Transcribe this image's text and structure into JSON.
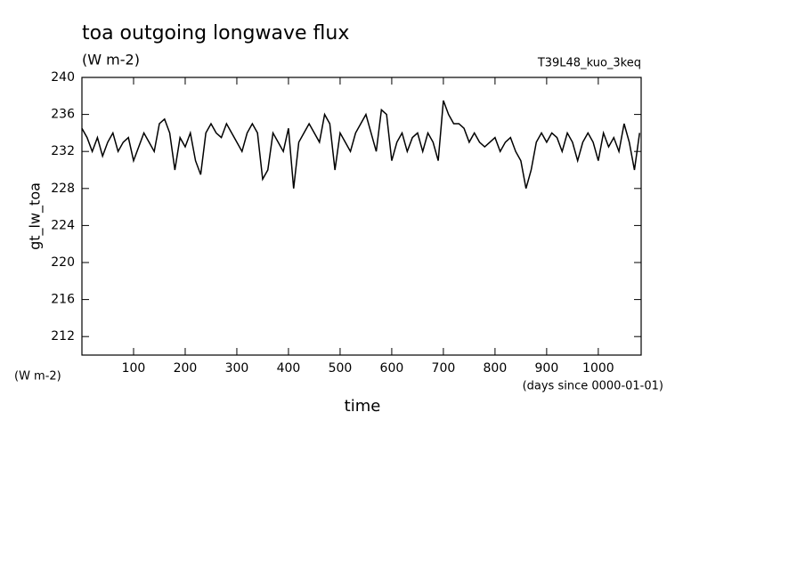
{
  "chart_data": {
    "type": "line",
    "title": "toa outgoing longwave flux",
    "subtitle": "(W m-2)",
    "run_label": "T39L48_kuo_3keq",
    "y_label": "gt_lw_toa",
    "y_units": "(W m-2)",
    "x_label": "time",
    "x_units": "(days since 0000-01-01)",
    "x": [
      0,
      10,
      20,
      30,
      40,
      50,
      60,
      70,
      80,
      90,
      100,
      110,
      120,
      130,
      140,
      150,
      160,
      170,
      180,
      190,
      200,
      210,
      220,
      230,
      240,
      250,
      260,
      270,
      280,
      290,
      300,
      310,
      320,
      330,
      340,
      350,
      360,
      370,
      380,
      390,
      400,
      410,
      420,
      430,
      440,
      450,
      460,
      470,
      480,
      490,
      500,
      510,
      520,
      530,
      540,
      550,
      560,
      570,
      580,
      590,
      600,
      610,
      620,
      630,
      640,
      650,
      660,
      670,
      680,
      690,
      700,
      710,
      720,
      730,
      740,
      750,
      760,
      770,
      780,
      790,
      800,
      810,
      820,
      830,
      840,
      850,
      860,
      870,
      880,
      890,
      900,
      910,
      920,
      930,
      940,
      950,
      960,
      970,
      980,
      990,
      1000,
      1010,
      1020,
      1030,
      1040,
      1050,
      1060,
      1070,
      1080
    ],
    "series": [
      {
        "name": "gt_lw_toa",
        "color": "#000000",
        "values": [
          234.5,
          233.5,
          232,
          233.5,
          231.5,
          233,
          234,
          232,
          233,
          233.5,
          231,
          232.5,
          234,
          233,
          232,
          235,
          235.5,
          234,
          230,
          233.5,
          232.5,
          234,
          231,
          229.5,
          234,
          235,
          234,
          233.5,
          235,
          234,
          233,
          232,
          234,
          235,
          234,
          229,
          230,
          234,
          233,
          232,
          234.5,
          228,
          233,
          234,
          235,
          234,
          233,
          236,
          235,
          230,
          234,
          233,
          232,
          234,
          235,
          236,
          234,
          232,
          236.5,
          236,
          231,
          233,
          234,
          232,
          233.5,
          234,
          232,
          234,
          233,
          231,
          237.5,
          236,
          235,
          235,
          234.5,
          233,
          234,
          233,
          232.5,
          233,
          233.5,
          232,
          233,
          233.5,
          232,
          231,
          228,
          230,
          233,
          234,
          233,
          234,
          233.5,
          232,
          234,
          233,
          231,
          233,
          234,
          233,
          231,
          234,
          232.5,
          233.5,
          232,
          235,
          233,
          230,
          234
        ]
      }
    ],
    "xlim": [
      0,
      1083
    ],
    "ylim": [
      210,
      240
    ],
    "xticks": [
      100,
      200,
      300,
      400,
      500,
      600,
      700,
      800,
      900,
      1000
    ],
    "yticks": [
      212,
      216,
      220,
      224,
      228,
      232,
      236,
      240
    ]
  }
}
